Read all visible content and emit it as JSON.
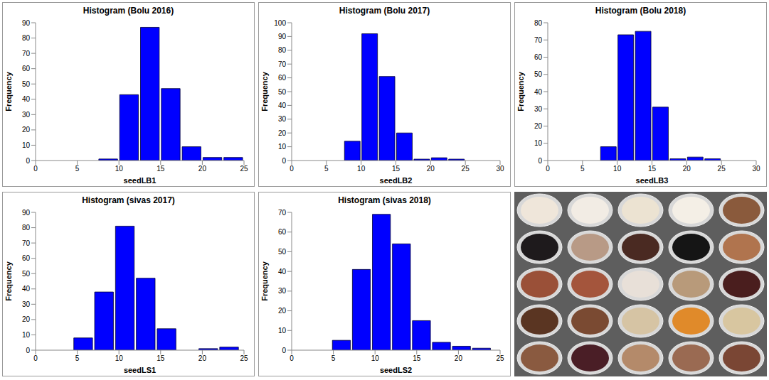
{
  "chart_data": [
    {
      "type": "histogram",
      "title": "Histogram (Bolu 2016)",
      "x_label": "seedLB1",
      "y_label": "Frequency",
      "color": "#0000ff",
      "bins": [
        7.5,
        10,
        12.5,
        15,
        17.5,
        20,
        22.5,
        25
      ],
      "counts": [
        1,
        43,
        87,
        47,
        9,
        2,
        2
      ],
      "xlim": [
        0,
        25
      ],
      "xticks": [
        0,
        5,
        10,
        15,
        20,
        25
      ],
      "ylim": [
        0,
        90
      ],
      "yticks": [
        0,
        10,
        20,
        30,
        40,
        50,
        60,
        70,
        80,
        90
      ]
    },
    {
      "type": "histogram",
      "title": "Histogram (Bolu 2017)",
      "x_label": "seedLB2",
      "y_label": "Frequency",
      "color": "#0000ff",
      "bins": [
        7.5,
        10,
        12.5,
        15,
        17.5,
        20,
        22.5,
        25
      ],
      "counts": [
        14,
        92,
        61,
        20,
        1,
        2,
        1
      ],
      "xlim": [
        0,
        30
      ],
      "xticks": [
        0,
        5,
        10,
        15,
        20,
        25,
        30
      ],
      "ylim": [
        0,
        100
      ],
      "yticks": [
        0,
        10,
        20,
        30,
        40,
        50,
        60,
        70,
        80,
        90,
        100
      ]
    },
    {
      "type": "histogram",
      "title": "Histogram (Bolu 2018)",
      "x_label": "seedLB3",
      "y_label": "Frequency",
      "color": "#0000ff",
      "bins": [
        7.5,
        10,
        12.5,
        15,
        17.5,
        20,
        22.5,
        25
      ],
      "counts": [
        8,
        73,
        75,
        31,
        1,
        2,
        1
      ],
      "xlim": [
        0,
        30
      ],
      "xticks": [
        0,
        5,
        10,
        15,
        20,
        25,
        30
      ],
      "ylim": [
        0,
        80
      ],
      "yticks": [
        0,
        10,
        20,
        30,
        40,
        50,
        60,
        70,
        80
      ]
    },
    {
      "type": "histogram",
      "title": "Histogram (sivas 2017)",
      "x_label": "seedLS1",
      "y_label": "Frequency",
      "color": "#0000ff",
      "bins": [
        4.5,
        7,
        9.5,
        12,
        14.5,
        17,
        19.5,
        22,
        24.5
      ],
      "counts": [
        8,
        38,
        81,
        47,
        14,
        0,
        1,
        2
      ],
      "xlim": [
        0,
        25
      ],
      "xticks": [
        0,
        5,
        10,
        15,
        20,
        25
      ],
      "ylim": [
        0,
        90
      ],
      "yticks": [
        0,
        10,
        20,
        30,
        40,
        50,
        60,
        70,
        80,
        90
      ]
    },
    {
      "type": "histogram",
      "title": "Histogram (sivas 2018)",
      "x_label": "seedLS2",
      "y_label": "Frequency",
      "color": "#0000ff",
      "bins": [
        4.8,
        7.2,
        9.6,
        12,
        14.4,
        16.8,
        19.2,
        21.6,
        24
      ],
      "counts": [
        5,
        41,
        69,
        54,
        15,
        4,
        2,
        1
      ],
      "xlim": [
        0,
        25
      ],
      "xticks": [
        0,
        5,
        10,
        15,
        20,
        25
      ],
      "ylim": [
        0,
        70
      ],
      "yticks": [
        0,
        10,
        20,
        30,
        40,
        50,
        60,
        70
      ]
    }
  ]
}
